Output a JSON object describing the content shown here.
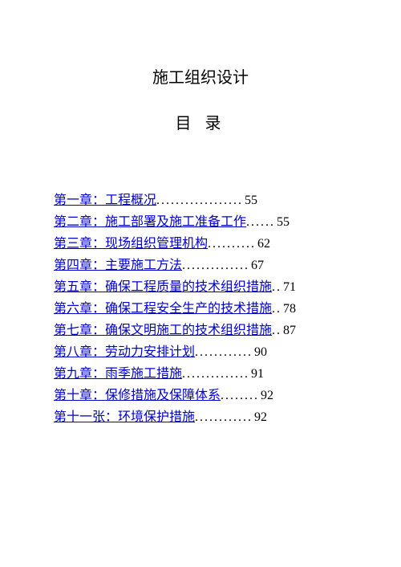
{
  "title": "施工组织设计",
  "subtitle": "目 录",
  "toc": [
    {
      "label": "第一章：工程概况",
      "page": "55",
      "dots": ".................."
    },
    {
      "label": "第二章：施工部署及施工准备工作",
      "page": "55",
      "dots": "......"
    },
    {
      "label": "第三章：现场组织管理机构",
      "page": "62",
      "dots": ".........."
    },
    {
      "label": "第四章：主要施工方法",
      "page": "67",
      "dots": ".............."
    },
    {
      "label": "第五章：确保工程质量的技术组织措施",
      "page": "71",
      "dots": ".."
    },
    {
      "label": "第六章：确保工程安全生产的技术措施",
      "page": "78",
      "dots": ".."
    },
    {
      "label": "第七章：确保文明施工的技术组织措施",
      "page": "87",
      "dots": ".."
    },
    {
      "label": "第八章：劳动力安排计划",
      "page": "90",
      "dots": "............"
    },
    {
      "label": "第九章：雨季施工措施",
      "page": "91",
      "dots": ".............."
    },
    {
      "label": "第十章：保修措施及保障体系",
      "page": "92",
      "dots": "........"
    },
    {
      "label": "第十一张：环境保护措施",
      "page": "92",
      "dots": "............"
    }
  ]
}
